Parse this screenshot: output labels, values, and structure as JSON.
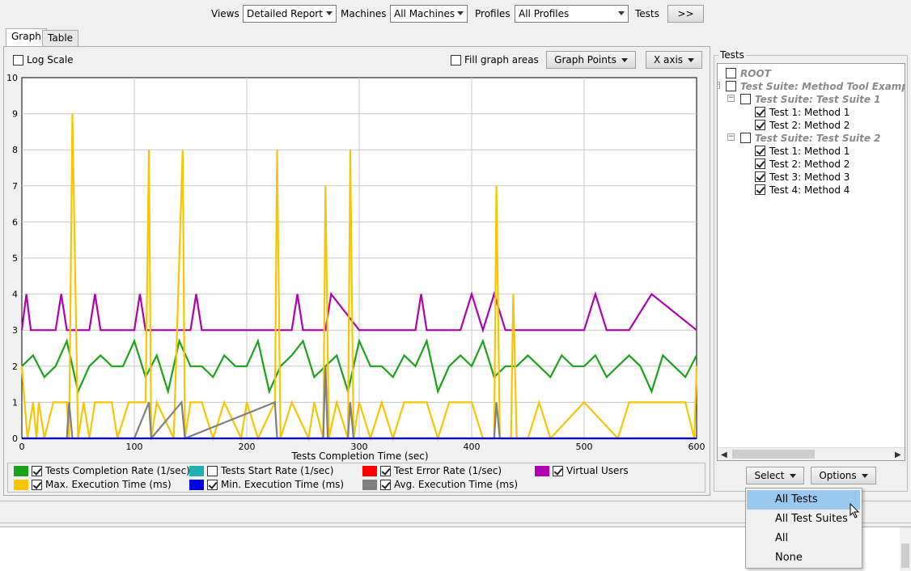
{
  "toolbar": {
    "views_label": "Views",
    "views_value": "Detailed Report",
    "machines_label": "Machines",
    "machines_value": "All Machines",
    "profiles_label": "Profiles",
    "profiles_value": "All Profiles",
    "tests_label": "Tests",
    "more_button": ">>"
  },
  "tabs": [
    {
      "label": "Graph",
      "selected": true
    },
    {
      "label": "Table",
      "selected": false
    }
  ],
  "graph_options": {
    "log_scale_label": "Log Scale",
    "log_scale_checked": false,
    "fill_areas_label": "Fill graph areas",
    "fill_areas_checked": false,
    "graph_points_button": "Graph Points",
    "x_axis_button": "X axis"
  },
  "chart_data": {
    "type": "line",
    "title": "",
    "xlabel": "Tests Completion Time (sec)",
    "ylabel": "",
    "xlim": [
      0,
      600
    ],
    "ylim": [
      0,
      10
    ],
    "x_ticks": [
      "0",
      "100",
      "200",
      "300",
      "400",
      "500",
      "600"
    ],
    "y_ticks": [
      "0",
      "1",
      "2",
      "3",
      "4",
      "5",
      "6",
      "7",
      "8",
      "9",
      "10"
    ],
    "grid": true,
    "series": [
      {
        "name": "Virtual Users",
        "color": "#b000b0",
        "x": [
          0,
          4,
          8,
          30,
          35,
          40,
          60,
          65,
          70,
          100,
          105,
          110,
          150,
          155,
          160,
          190,
          200,
          240,
          245,
          250,
          270,
          275,
          300,
          350,
          355,
          360,
          390,
          400,
          410,
          420,
          430,
          440,
          480,
          500,
          510,
          520,
          540,
          560,
          600
        ],
        "y": [
          3,
          4,
          3,
          3,
          4,
          3,
          3,
          4,
          3,
          3,
          4,
          3,
          3,
          4,
          3,
          3,
          3,
          3,
          4,
          3,
          3,
          4,
          3,
          3,
          4,
          3,
          3,
          4,
          3,
          4,
          3,
          3,
          3,
          3,
          4,
          3,
          3,
          4,
          3
        ]
      },
      {
        "name": "Tests Completion Rate (1/sec)",
        "color": "#1aa31a",
        "x": [
          0,
          10,
          20,
          30,
          40,
          50,
          60,
          70,
          80,
          90,
          100,
          110,
          120,
          130,
          140,
          150,
          160,
          170,
          180,
          190,
          200,
          210,
          220,
          230,
          240,
          250,
          260,
          270,
          280,
          290,
          300,
          310,
          320,
          330,
          340,
          350,
          360,
          370,
          380,
          390,
          400,
          410,
          420,
          430,
          440,
          450,
          460,
          470,
          480,
          490,
          500,
          510,
          520,
          530,
          540,
          550,
          560,
          570,
          580,
          590,
          600
        ],
        "y": [
          2,
          2.3,
          1.7,
          2,
          2.7,
          1.3,
          2,
          2.3,
          2,
          2,
          2.7,
          1.7,
          2.3,
          1.3,
          2.7,
          2,
          2,
          1.7,
          2.3,
          2,
          2,
          2.7,
          1.3,
          2,
          2.3,
          2.7,
          1.7,
          2,
          2.3,
          1.3,
          2.7,
          2,
          2,
          1.7,
          2.3,
          2,
          2.7,
          1.3,
          2,
          2.3,
          2,
          2.7,
          1.7,
          2,
          2,
          2.3,
          2,
          1.7,
          2.3,
          2,
          2,
          2.3,
          1.7,
          2,
          2.3,
          2,
          1.3,
          2.3,
          2,
          1.7,
          2.3
        ]
      },
      {
        "name": "Max. Execution Time (ms)",
        "color": "#f7c600",
        "x": [
          0,
          5,
          10,
          13,
          15,
          20,
          28,
          30,
          40,
          42,
          45,
          50,
          55,
          60,
          65,
          80,
          85,
          95,
          100,
          110,
          113,
          115,
          120,
          135,
          143,
          145,
          150,
          160,
          170,
          180,
          195,
          200,
          210,
          225,
          227,
          230,
          240,
          255,
          260,
          268,
          270,
          273,
          280,
          290,
          292,
          295,
          300,
          310,
          320,
          330,
          340,
          350,
          360,
          370,
          380,
          400,
          410,
          420,
          422,
          425,
          435,
          437,
          440,
          450,
          460,
          470,
          500,
          530,
          540,
          560,
          570,
          590,
          598,
          600
        ],
        "y": [
          2,
          0,
          1,
          0,
          1,
          0,
          1,
          1,
          1,
          0,
          9,
          0,
          1,
          0,
          1,
          1,
          0,
          1,
          1,
          1,
          8,
          0,
          1,
          0,
          8,
          0,
          1,
          1,
          0,
          1,
          0,
          1,
          0,
          1,
          8,
          0,
          1,
          0,
          1,
          0,
          7,
          0,
          1,
          0,
          8,
          0,
          1,
          0,
          1,
          0,
          1,
          1,
          1,
          0,
          1,
          1,
          0,
          0,
          7,
          0,
          0,
          4,
          0,
          0,
          1,
          0,
          1,
          0,
          1,
          1,
          1,
          1,
          0,
          2
        ]
      },
      {
        "name": "Avg. Execution Time (ms)",
        "color": "#808080",
        "x": [
          0,
          40,
          42,
          45,
          100,
          113,
          115,
          142,
          145,
          225,
          227,
          268,
          270,
          272,
          290,
          292,
          295,
          420,
          422,
          425,
          600
        ],
        "y": [
          0,
          0,
          1,
          0,
          0,
          1,
          0,
          1,
          0,
          1,
          0,
          0,
          2,
          0,
          0,
          1,
          0,
          0,
          1,
          0,
          0
        ]
      },
      {
        "name": "Min. Execution Time (ms)",
        "color": "#0000e0",
        "x": [
          0,
          600
        ],
        "y": [
          0,
          0
        ]
      }
    ]
  },
  "legend": [
    {
      "label": "Tests Completion Rate (1/sec)",
      "color": "#1aa31a",
      "checked": true
    },
    {
      "label": "Tests Start Rate (1/sec)",
      "color": "#1fb2b2",
      "checked": false
    },
    {
      "label": "Test Error Rate (1/sec)",
      "color": "#ff0000",
      "checked": true
    },
    {
      "label": "Virtual Users",
      "color": "#b000b0",
      "checked": true
    },
    {
      "label": "Max. Execution Time (ms)",
      "color": "#f7c600",
      "checked": true
    },
    {
      "label": "Min. Execution Time (ms)",
      "color": "#0000e0",
      "checked": true
    },
    {
      "label": "Avg. Execution Time (ms)",
      "color": "#808080",
      "checked": true
    }
  ],
  "tests_panel": {
    "title": "Tests",
    "tree": [
      {
        "label": "ROOT",
        "suite": true,
        "checked": false
      },
      {
        "label": "Test Suite: Method Tool Example",
        "suite": true,
        "checked": false
      },
      {
        "label": "Test Suite: Test Suite 1",
        "suite": true,
        "checked": false
      },
      {
        "label": "Test 1: Method 1",
        "suite": false,
        "checked": true
      },
      {
        "label": "Test 2: Method 2",
        "suite": false,
        "checked": true
      },
      {
        "label": "Test Suite: Test Suite 2",
        "suite": true,
        "checked": false
      },
      {
        "label": "Test 1: Method 1",
        "suite": false,
        "checked": true
      },
      {
        "label": "Test 2: Method 2",
        "suite": false,
        "checked": true
      },
      {
        "label": "Test 3: Method 3",
        "suite": false,
        "checked": true
      },
      {
        "label": "Test 4: Method 4",
        "suite": false,
        "checked": true
      }
    ],
    "select_button": "Select",
    "options_button": "Options"
  },
  "select_menu": {
    "items": [
      "All Tests",
      "All Test Suites",
      "All",
      "None"
    ],
    "highlighted": "All Tests"
  },
  "icons": [
    "tree-collapse-icon",
    "scroll-left-icon",
    "scroll-right-icon",
    "dropdown-arrow-icon",
    "mouse-cursor-icon"
  ]
}
